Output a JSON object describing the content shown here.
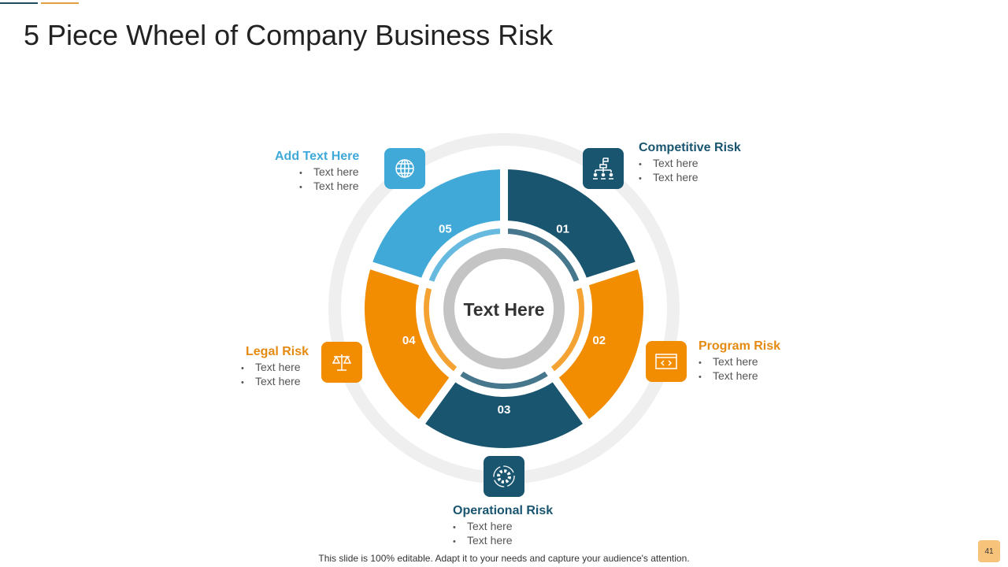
{
  "title": "5 Piece Wheel of Company Business Risk",
  "colors": {
    "dark": "#1a5570",
    "orange": "#f28c00",
    "light": "#41a9d8",
    "ring": "#efefef",
    "inner_ring": "#c4c4c4"
  },
  "center_text": "Text Here",
  "segments": [
    {
      "num": "01",
      "title": "Competitive Risk",
      "icon": "org-chart-flag-icon",
      "bullets": [
        "Text here",
        "Text here"
      ]
    },
    {
      "num": "02",
      "title": "Program Risk",
      "icon": "code-window-icon",
      "bullets": [
        "Text here",
        "Text here"
      ]
    },
    {
      "num": "03",
      "title": "Operational Risk",
      "icon": "gear-icon",
      "bullets": [
        "Text here",
        "Text here"
      ]
    },
    {
      "num": "04",
      "title": "Legal Risk",
      "icon": "scales-icon",
      "bullets": [
        "Text here",
        "Text here"
      ]
    },
    {
      "num": "05",
      "title": "Add Text Here",
      "icon": "globe-icon",
      "bullets": [
        "Text here",
        "Text here"
      ]
    }
  ],
  "footer": "This slide is 100% editable. Adapt it to your needs and capture your audience's attention.",
  "page_number": "41"
}
